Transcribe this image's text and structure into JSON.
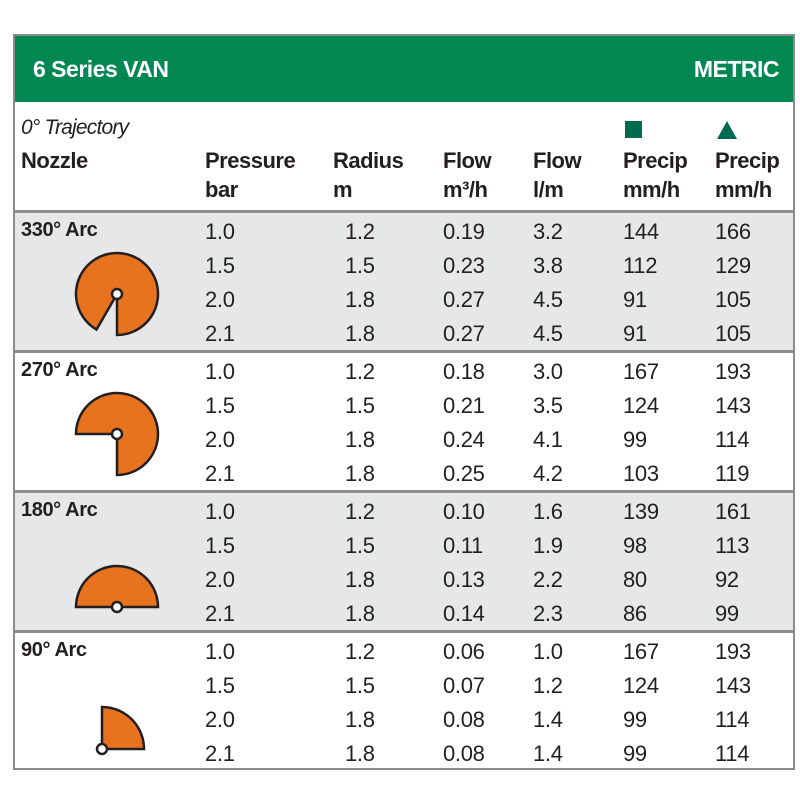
{
  "title": "6 Series VAN",
  "units": "METRIC",
  "trajectory": "0° Trajectory",
  "headers": {
    "nozzle": "Nozzle",
    "pressure": [
      "Pressure",
      "bar"
    ],
    "radius": [
      "Radius",
      "m"
    ],
    "flow_m3h": [
      "Flow",
      "m³/h"
    ],
    "flow_lm": [
      "Flow",
      "l/m"
    ],
    "precip_square": [
      "Precip",
      "mm/h"
    ],
    "precip_triangle": [
      "Precip",
      "mm/h"
    ]
  },
  "colors": {
    "header_green": "#008752",
    "symbol_green": "#006b4f",
    "arc_orange": "#e8731f"
  },
  "groups": [
    {
      "name": "330° Arc",
      "arc": 330,
      "rows": [
        [
          "1.0",
          "1.2",
          "0.19",
          "3.2",
          "144",
          "166"
        ],
        [
          "1.5",
          "1.5",
          "0.23",
          "3.8",
          "112",
          "129"
        ],
        [
          "2.0",
          "1.8",
          "0.27",
          "4.5",
          "91",
          "105"
        ],
        [
          "2.1",
          "1.8",
          "0.27",
          "4.5",
          "91",
          "105"
        ]
      ]
    },
    {
      "name": "270° Arc",
      "arc": 270,
      "rows": [
        [
          "1.0",
          "1.2",
          "0.18",
          "3.0",
          "167",
          "193"
        ],
        [
          "1.5",
          "1.5",
          "0.21",
          "3.5",
          "124",
          "143"
        ],
        [
          "2.0",
          "1.8",
          "0.24",
          "4.1",
          "99",
          "114"
        ],
        [
          "2.1",
          "1.8",
          "0.25",
          "4.2",
          "103",
          "119"
        ]
      ]
    },
    {
      "name": "180° Arc",
      "arc": 180,
      "rows": [
        [
          "1.0",
          "1.2",
          "0.10",
          "1.6",
          "139",
          "161"
        ],
        [
          "1.5",
          "1.5",
          "0.11",
          "1.9",
          "98",
          "113"
        ],
        [
          "2.0",
          "1.8",
          "0.13",
          "2.2",
          "80",
          "92"
        ],
        [
          "2.1",
          "1.8",
          "0.14",
          "2.3",
          "86",
          "99"
        ]
      ]
    },
    {
      "name": "90° Arc",
      "arc": 90,
      "rows": [
        [
          "1.0",
          "1.2",
          "0.06",
          "1.0",
          "167",
          "193"
        ],
        [
          "1.5",
          "1.5",
          "0.07",
          "1.2",
          "124",
          "143"
        ],
        [
          "2.0",
          "1.8",
          "0.08",
          "1.4",
          "99",
          "114"
        ],
        [
          "2.1",
          "1.8",
          "0.08",
          "1.4",
          "99",
          "114"
        ]
      ]
    }
  ]
}
